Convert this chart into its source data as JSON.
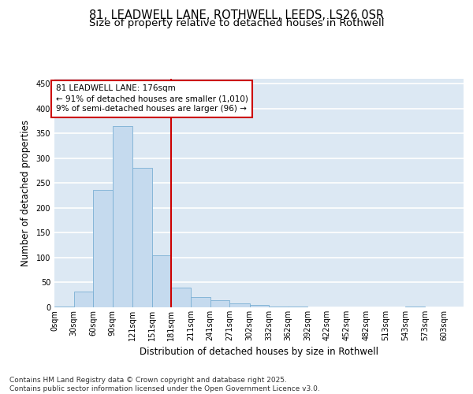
{
  "title_line1": "81, LEADWELL LANE, ROTHWELL, LEEDS, LS26 0SR",
  "title_line2": "Size of property relative to detached houses in Rothwell",
  "xlabel": "Distribution of detached houses by size in Rothwell",
  "ylabel": "Number of detached properties",
  "bar_color": "#c5daee",
  "bar_edge_color": "#7aafd4",
  "background_color": "#dce8f3",
  "bins_labels": [
    "0sqm",
    "30sqm",
    "60sqm",
    "90sqm",
    "121sqm",
    "151sqm",
    "181sqm",
    "211sqm",
    "241sqm",
    "271sqm",
    "302sqm",
    "332sqm",
    "362sqm",
    "392sqm",
    "422sqm",
    "452sqm",
    "482sqm",
    "513sqm",
    "543sqm",
    "573sqm",
    "603sqm"
  ],
  "values": [
    2,
    32,
    237,
    365,
    280,
    105,
    40,
    20,
    15,
    8,
    5,
    2,
    1,
    0,
    0,
    0,
    0,
    0,
    1,
    0,
    0
  ],
  "bin_starts": [
    0,
    30,
    60,
    90,
    121,
    151,
    181,
    211,
    241,
    271,
    302,
    332,
    362,
    392,
    422,
    452,
    482,
    513,
    543,
    573,
    603
  ],
  "annotation_title": "81 LEADWELL LANE: 176sqm",
  "annotation_line2": "← 91% of detached houses are smaller (1,010)",
  "annotation_line3": "9% of semi-detached houses are larger (96) →",
  "vline_color": "#cc0000",
  "annotation_box_edge": "#cc0000",
  "ylim": [
    0,
    460
  ],
  "yticks": [
    0,
    50,
    100,
    150,
    200,
    250,
    300,
    350,
    400,
    450
  ],
  "footer": "Contains HM Land Registry data © Crown copyright and database right 2025.\nContains public sector information licensed under the Open Government Licence v3.0.",
  "title_fontsize": 10.5,
  "subtitle_fontsize": 9.5,
  "axis_label_fontsize": 8.5,
  "tick_fontsize": 7,
  "footer_fontsize": 6.5,
  "annotation_fontsize": 7.5
}
